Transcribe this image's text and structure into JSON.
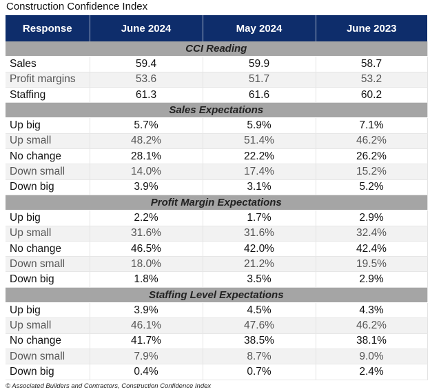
{
  "title": "Construction Confidence Index",
  "header": [
    "Response",
    "June 2024",
    "May 2024",
    "June 2023"
  ],
  "sections": [
    {
      "label": "CCI Reading",
      "rows": [
        [
          "Sales",
          "59.4",
          "59.9",
          "58.7"
        ],
        [
          "Profit margins",
          "53.6",
          "51.7",
          "53.2"
        ],
        [
          "Staffing",
          "61.3",
          "61.6",
          "60.2"
        ]
      ]
    },
    {
      "label": "Sales Expectations",
      "rows": [
        [
          "Up big",
          "5.7%",
          "5.9%",
          "7.1%"
        ],
        [
          "Up small",
          "48.2%",
          "51.4%",
          "46.2%"
        ],
        [
          "No change",
          "28.1%",
          "22.2%",
          "26.2%"
        ],
        [
          "Down small",
          "14.0%",
          "17.4%",
          "15.2%"
        ],
        [
          "Down big",
          "3.9%",
          "3.1%",
          "5.2%"
        ]
      ]
    },
    {
      "label": "Profit Margin Expectations",
      "rows": [
        [
          "Up big",
          "2.2%",
          "1.7%",
          "2.9%"
        ],
        [
          "Up small",
          "31.6%",
          "31.6%",
          "32.4%"
        ],
        [
          "No change",
          "46.5%",
          "42.0%",
          "42.4%"
        ],
        [
          "Down small",
          "18.0%",
          "21.2%",
          "19.5%"
        ],
        [
          "Down big",
          "1.8%",
          "3.5%",
          "2.9%"
        ]
      ]
    },
    {
      "label": "Staffing Level Expectations",
      "rows": [
        [
          "Up big",
          "3.9%",
          "4.5%",
          "4.3%"
        ],
        [
          "Up small",
          "46.1%",
          "47.6%",
          "46.2%"
        ],
        [
          "No change",
          "41.7%",
          "38.5%",
          "38.1%"
        ],
        [
          "Down small",
          "7.9%",
          "8.7%",
          "9.0%"
        ],
        [
          "Down big",
          "0.4%",
          "0.7%",
          "2.4%"
        ]
      ]
    }
  ],
  "footer": "© Associated Builders and Contractors, Construction Confidence Index",
  "colors": {
    "header_bg": "#0e2d6b",
    "section_bg": "#a5a5a5",
    "alt_row_bg": "#f2f2f2"
  }
}
